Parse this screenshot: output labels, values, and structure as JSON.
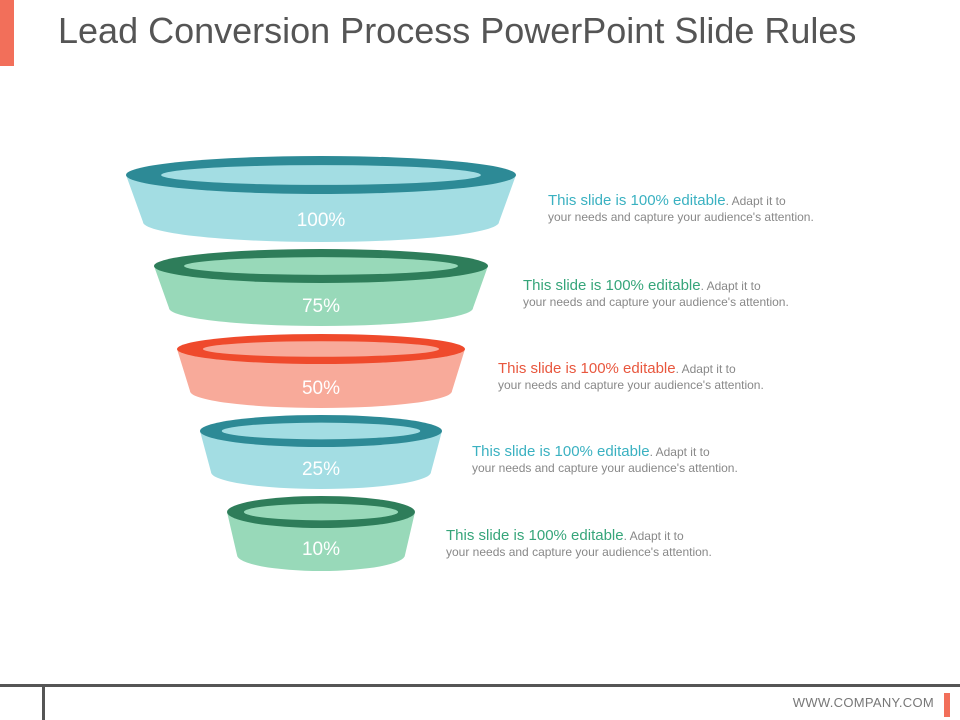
{
  "slide": {
    "title": "Lead Conversion Process PowerPoint Slide Rules",
    "footer_url": "WWW.COMPANY.COM"
  },
  "funnel": {
    "stages": [
      {
        "percent": "100%",
        "headline": "This slide is 100% editable",
        "body_line1": ". Adapt it to",
        "body_line2": "your needs and capture your audience's attention.",
        "ring_color": "#2d8a96",
        "body_color": "#a3dde3",
        "text_color": "#3ab1c1"
      },
      {
        "percent": "75%",
        "headline": "This slide is 100% editable",
        "body_line1": ". Adapt it to",
        "body_line2": "your needs and capture your audience's attention.",
        "ring_color": "#2e7d5a",
        "body_color": "#98d9b9",
        "text_color": "#36a57a"
      },
      {
        "percent": "50%",
        "headline": "This slide is 100% editable",
        "body_line1": ". Adapt it to",
        "body_line2": "your needs and capture your audience's attention.",
        "ring_color": "#ef4a2c",
        "body_color": "#f8aa9a",
        "text_color": "#e8573e"
      },
      {
        "percent": "25%",
        "headline": "This slide is 100% editable",
        "body_line1": ". Adapt it to",
        "body_line2": "your needs and capture your audience's attention.",
        "ring_color": "#2d8a96",
        "body_color": "#a3dde3",
        "text_color": "#3ab1c1"
      },
      {
        "percent": "10%",
        "headline": "This slide is 100% editable",
        "body_line1": ". Adapt it to",
        "body_line2": "your needs and capture your audience's attention.",
        "ring_color": "#2e7d5a",
        "body_color": "#98d9b9",
        "text_color": "#36a57a"
      }
    ]
  }
}
